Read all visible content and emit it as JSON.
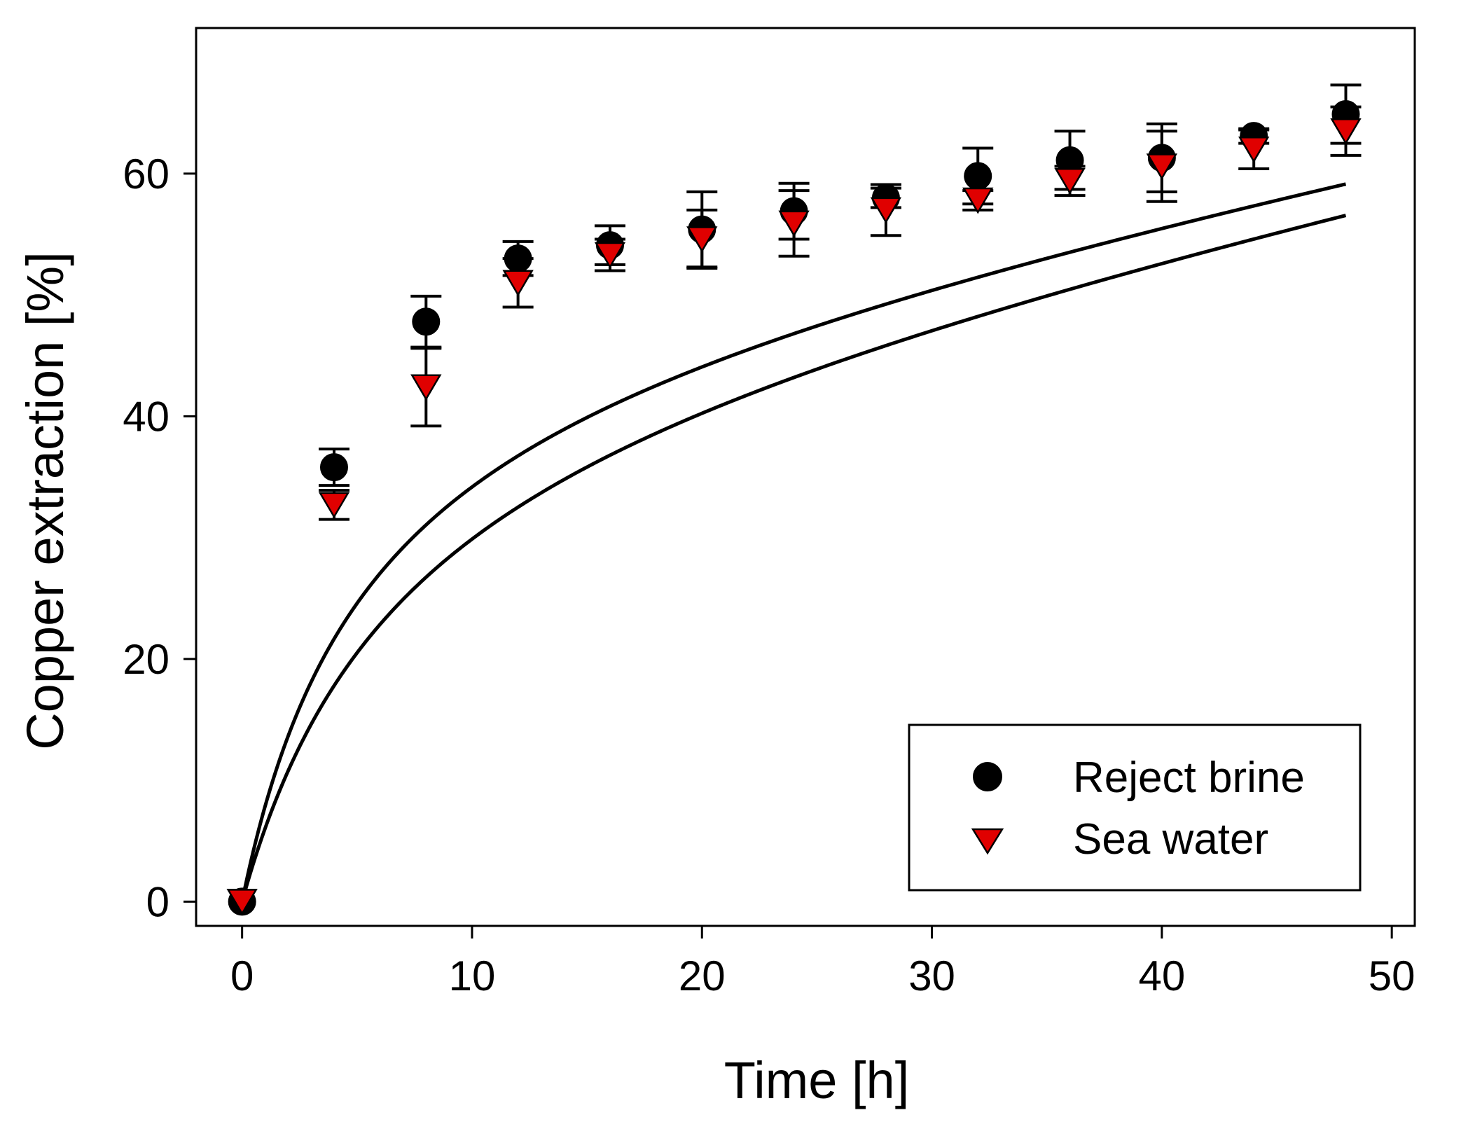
{
  "chart_data": {
    "type": "scatter",
    "title": "",
    "xlabel": "Time [h]",
    "ylabel": "Copper extraction [%]",
    "xlim": [
      -2,
      51
    ],
    "ylim": [
      -2,
      72
    ],
    "xticks": [
      0,
      10,
      20,
      30,
      40,
      50
    ],
    "yticks": [
      0,
      20,
      40,
      60
    ],
    "grid": false,
    "legend_position": "bottom-right",
    "series": [
      {
        "name": "Reject brine",
        "marker": "circle",
        "color": "#000000",
        "x": [
          0,
          4,
          8,
          12,
          16,
          20,
          24,
          28,
          32,
          36,
          40,
          44,
          48
        ],
        "y": [
          0,
          35.8,
          47.8,
          53.0,
          54.1,
          55.4,
          56.9,
          58.0,
          59.8,
          61.1,
          61.3,
          63.1,
          64.9
        ],
        "error": [
          0,
          1.5,
          2.1,
          1.4,
          1.6,
          3.1,
          2.3,
          0.8,
          2.3,
          2.4,
          2.8,
          0.6,
          2.4
        ],
        "fit_curve": {
          "a": 46.5,
          "b": 5.2,
          "c": 0.358
        }
      },
      {
        "name": "Sea water",
        "marker": "triangle-down",
        "color": "#e00000",
        "x": [
          0,
          4,
          8,
          12,
          16,
          20,
          24,
          28,
          32,
          36,
          40,
          44,
          48
        ],
        "y": [
          0,
          32.7,
          42.4,
          51.0,
          53.3,
          54.6,
          55.9,
          57.0,
          57.8,
          59.4,
          60.6,
          62.0,
          63.5
        ],
        "error": [
          0,
          1.2,
          3.2,
          2.0,
          1.3,
          2.4,
          2.7,
          2.1,
          0.8,
          1.2,
          2.9,
          1.6,
          2.0
        ],
        "fit_curve": {
          "a": 43.5,
          "b": 6.7,
          "c": 0.383
        }
      }
    ]
  }
}
